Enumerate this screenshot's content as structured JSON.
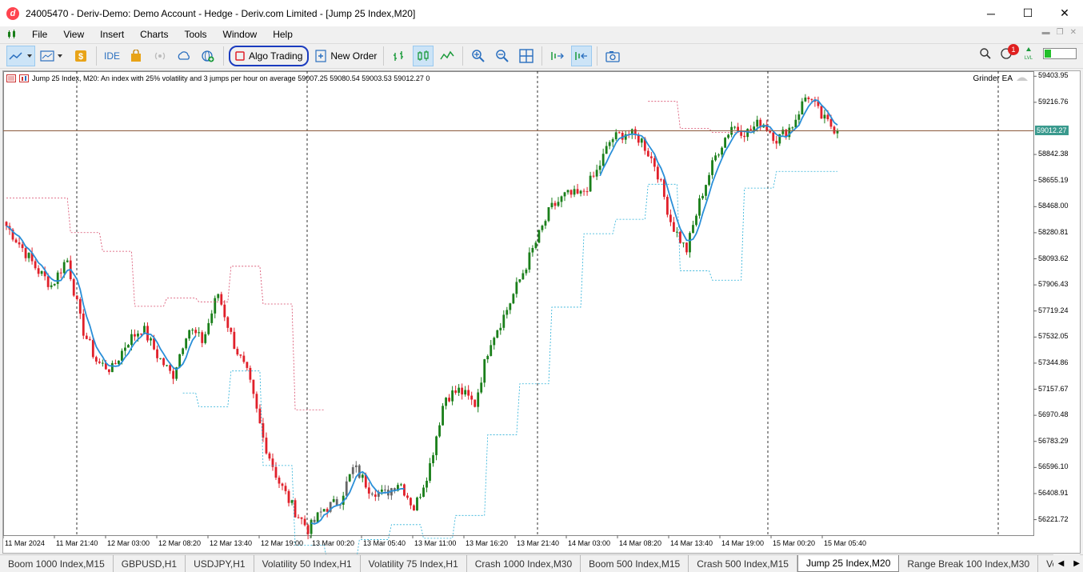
{
  "window": {
    "title": "24005470 - Deriv-Demo: Demo Account - Hedge - Deriv.com Limited - [Jump 25 Index,M20]",
    "minimize": "─",
    "maximize": "☐",
    "close": "✕"
  },
  "menu": [
    "File",
    "View",
    "Insert",
    "Charts",
    "Tools",
    "Window",
    "Help"
  ],
  "toolbar": {
    "ide_label": "IDE",
    "algo_trading_label": "Algo Trading",
    "new_order_label": "New Order",
    "notification_count": "1"
  },
  "chart": {
    "header": "Jump 25 Index, M20:  An index with 25% volatility and 3 jumps per hour on average  59007.25 59080.54 59003.53 59012.27  0",
    "ea_name": "Grinder EA",
    "current_price": "59012.27",
    "accent_bull": "#1a7f1a",
    "accent_bear": "#e0202a",
    "accent_ma": "#2a8fd8",
    "price_line_color": "#8b5a3c",
    "price_tag_color": "#3a9a8e"
  },
  "chart_data": {
    "type": "candlestick",
    "title": "Jump 25 Index, M20",
    "yticks": [
      "59403.95",
      "59216.76",
      "58842.38",
      "58655.19",
      "58468.00",
      "58280.81",
      "58093.62",
      "57906.43",
      "57719.24",
      "57532.05",
      "57344.86",
      "57157.67",
      "56970.48",
      "56783.29",
      "56596.10",
      "56408.91",
      "56221.72"
    ],
    "xticks": [
      "11 Mar 2024",
      "11 Mar 21:40",
      "12 Mar 03:00",
      "12 Mar 08:20",
      "12 Mar 13:40",
      "12 Mar 19:00",
      "13 Mar 00:20",
      "13 Mar 05:40",
      "13 Mar 11:00",
      "13 Mar 16:20",
      "13 Mar 21:40",
      "14 Mar 03:00",
      "14 Mar 08:20",
      "14 Mar 13:40",
      "14 Mar 19:00",
      "15 Mar 00:20",
      "15 Mar 05:40"
    ],
    "ylim": [
      56110,
      59440
    ],
    "approx_close_path": [
      58330,
      58180,
      58020,
      57900,
      58100,
      57600,
      57350,
      57300,
      57500,
      57600,
      57400,
      57250,
      57600,
      57500,
      57850,
      57500,
      57250,
      56800,
      56500,
      56300,
      56150,
      56300,
      56350,
      56600,
      56450,
      56400,
      56500,
      56300,
      56600,
      57100,
      57150,
      57050,
      57500,
      57700,
      57950,
      58200,
      58450,
      58550,
      58550,
      58700,
      58950,
      59000,
      58950,
      58750,
      58350,
      58150,
      58550,
      58850,
      59050,
      59000,
      59080,
      58950,
      59050,
      59280,
      59100,
      59012.27
    ]
  },
  "tabs": [
    {
      "label": "Boom 1000 Index,M15"
    },
    {
      "label": "GBPUSD,H1"
    },
    {
      "label": "USDJPY,H1"
    },
    {
      "label": "Volatility 50 Index,H1"
    },
    {
      "label": "Volatility 75 Index,H1"
    },
    {
      "label": "Crash 1000 Index,M30"
    },
    {
      "label": "Boom 500 Index,M15"
    },
    {
      "label": "Crash 500 Index,M15"
    },
    {
      "label": "Jump 25 Index,M20",
      "active": true
    },
    {
      "label": "Range Break 100 Index,M30"
    },
    {
      "label": "Vola"
    }
  ]
}
